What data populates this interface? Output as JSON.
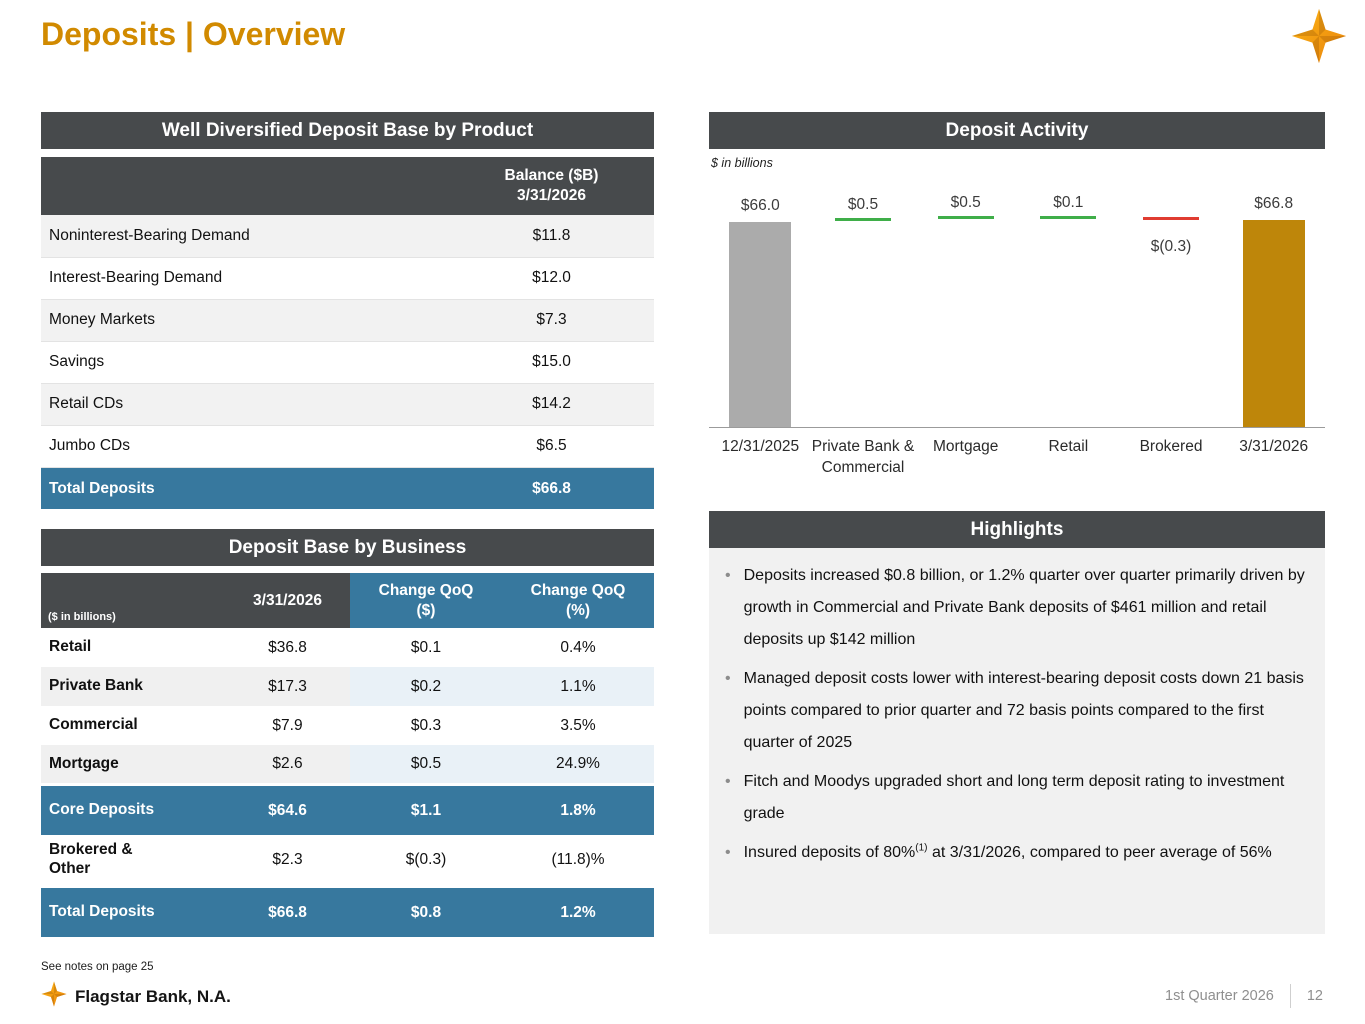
{
  "page": {
    "title": "Deposits | Overview",
    "notes": "See notes on page 25",
    "footer": {
      "brand": "Flagstar Bank, N.A.",
      "quarter": "1st Quarter 2026",
      "page_number": "12"
    },
    "colors": {
      "accent_gold": "#D18A00",
      "header_dark": "#474A4C",
      "accent_blue": "#37789E",
      "bar_gray": "#ABABAB",
      "bar_gold": "#BE860A",
      "tick_green": "#3FAE49",
      "tick_red": "#E03C31"
    }
  },
  "product_table": {
    "title": "Well Diversified Deposit Base by Product",
    "value_header_line1": "Balance ($B)",
    "value_header_line2": "3/31/2026",
    "rows": [
      {
        "label": "Noninterest-Bearing Demand",
        "value": "$11.8"
      },
      {
        "label": "Interest-Bearing Demand",
        "value": "$12.0"
      },
      {
        "label": "Money Markets",
        "value": "$7.3"
      },
      {
        "label": "Savings",
        "value": "$15.0"
      },
      {
        "label": "Retail CDs",
        "value": "$14.2"
      },
      {
        "label": "Jumbo CDs",
        "value": "$6.5"
      }
    ],
    "total_row": {
      "label": "Total Deposits",
      "value": "$66.8"
    }
  },
  "business_table": {
    "title": "Deposit Base by Business",
    "unit_label": "($ in billions)",
    "col_date": "3/31/2026",
    "col_qoq_dollar_line1": "Change QoQ",
    "col_qoq_dollar_line2": "($)",
    "col_qoq_pct_line1": "Change QoQ",
    "col_qoq_pct_line2": "(%)",
    "rows": [
      {
        "label": "Retail",
        "date_value": "$36.8",
        "qoq_dollar": "$0.1",
        "qoq_pct": "0.4%"
      },
      {
        "label": "Private Bank",
        "date_value": "$17.3",
        "qoq_dollar": "$0.2",
        "qoq_pct": "1.1%"
      },
      {
        "label": "Commercial",
        "date_value": "$7.9",
        "qoq_dollar": "$0.3",
        "qoq_pct": "3.5%"
      },
      {
        "label": "Mortgage",
        "date_value": "$2.6",
        "qoq_dollar": "$0.5",
        "qoq_pct": "24.9%"
      }
    ],
    "core_row": {
      "label": "Core Deposits",
      "date_value": "$64.6",
      "qoq_dollar": "$1.1",
      "qoq_pct": "1.8%"
    },
    "brokered_row": {
      "label_line1": "Brokered &",
      "label_line2": "Other",
      "date_value": "$2.3",
      "qoq_dollar": "$(0.3)",
      "qoq_pct": "(11.8)%"
    },
    "total_row": {
      "label": "Total Deposits",
      "date_value": "$66.8",
      "qoq_dollar": "$0.8",
      "qoq_pct": "1.2%"
    }
  },
  "chart_data": {
    "type": "bar",
    "subtype": "waterfall",
    "title": "Deposit Activity",
    "unit_note": "$ in billions",
    "ylim": [
      0,
      70
    ],
    "columns": [
      {
        "label": "12/31/2025",
        "value": 66.0,
        "display": "$66.0",
        "kind": "total",
        "color": "#ABABAB"
      },
      {
        "label": "Private Bank & Commercial",
        "value": 0.5,
        "display": "$0.5",
        "kind": "increase",
        "color": "#3FAE49"
      },
      {
        "label": "Mortgage",
        "value": 0.5,
        "display": "$0.5",
        "kind": "increase",
        "color": "#3FAE49"
      },
      {
        "label": "Retail",
        "value": 0.1,
        "display": "$0.1",
        "kind": "increase",
        "color": "#3FAE49"
      },
      {
        "label": "Brokered",
        "value": -0.3,
        "display": "$(0.3)",
        "kind": "decrease",
        "color": "#E03C31"
      },
      {
        "label": "3/31/2026",
        "value": 66.8,
        "display": "$66.8",
        "kind": "total",
        "color": "#BE860A"
      }
    ]
  },
  "highlights": {
    "title": "Highlights",
    "bullets": [
      {
        "text": "Deposits increased $0.8 billion, or 1.2% quarter over quarter primarily driven by growth in Commercial and Private Bank deposits of $461 million  and retail deposits up $142 million"
      },
      {
        "text": "Managed deposit costs lower with interest-bearing deposit costs down 21 basis points compared to prior quarter and 72 basis points compared to the first quarter of 2025"
      },
      {
        "text": "Fitch and Moodys upgraded short and long term deposit rating to investment grade"
      },
      {
        "text_before_sup": "Insured deposits of 80%",
        "sup": "(1)",
        "text_after_sup": " at 3/31/2026, compared to peer average of 56%"
      }
    ]
  }
}
